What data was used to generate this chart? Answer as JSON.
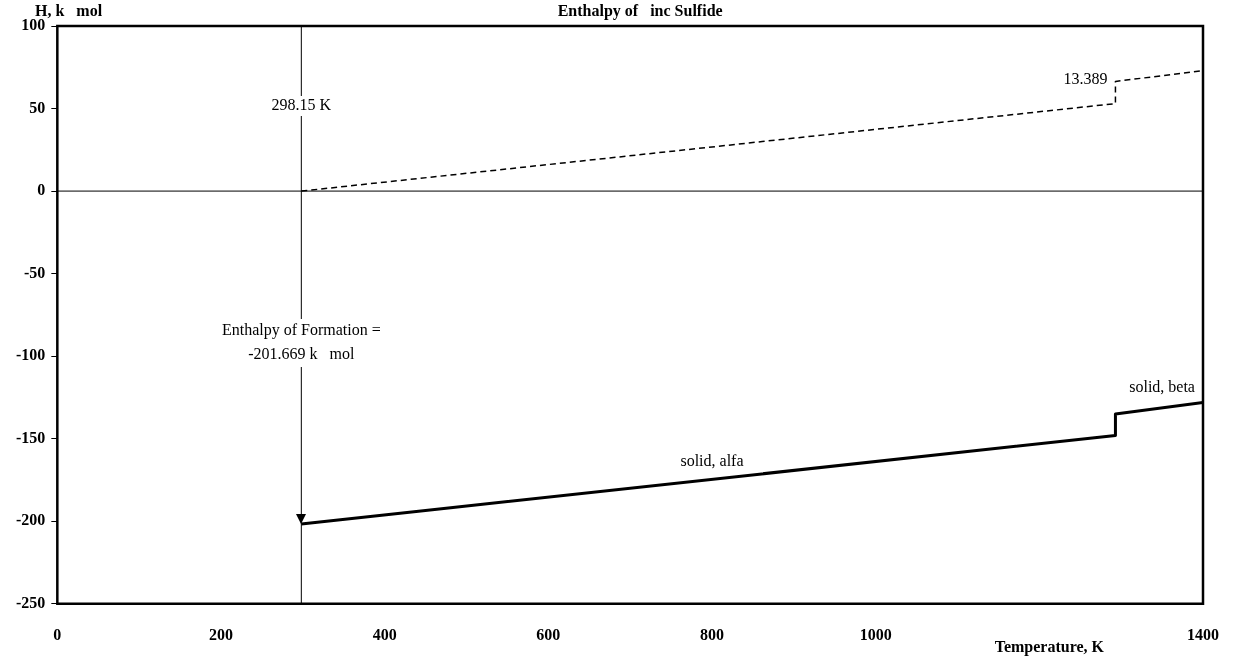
{
  "chart_data": {
    "type": "line",
    "title": "Enthalpy of   inc Sulfide",
    "ylabel": "H, k   mol",
    "xlabel": "Temperature, K",
    "xlim": [
      0,
      1400
    ],
    "xticks": [
      0,
      200,
      400,
      600,
      800,
      1000,
      1400
    ],
    "ylim": [
      -250,
      100
    ],
    "yticks": [
      -250,
      -200,
      -150,
      -100,
      -50,
      0,
      50,
      100
    ],
    "series": [
      {
        "color": "#000000",
        "line_style": "solid",
        "x": [
          298.15,
          1293,
          1293,
          1400
        ],
        "values": [
          -201.669,
          -148,
          -135,
          -128
        ]
      },
      {
        "color": "#000000",
        "line_style": "dashed",
        "x": [
          298.15,
          1293,
          1293,
          1400
        ],
        "values": [
          0,
          53,
          66.4,
          73
        ]
      }
    ],
    "ref_lines": [
      {
        "axis": "x",
        "value": 298.15,
        "label": "298.15 K"
      },
      {
        "axis": "y",
        "value": 0
      }
    ],
    "annotations": [
      {
        "text": "13.389",
        "x": 1293,
        "y": 53
      },
      "Enthalpy of Formation =\n-201.669 k   mol",
      {
        "text": "solid, alfa",
        "x": 800,
        "y": -175
      },
      {
        "text": "solid, beta",
        "x": 1350,
        "y": -130
      }
    ],
    "marker": "none",
    "grid": false,
    "legend": false
  }
}
